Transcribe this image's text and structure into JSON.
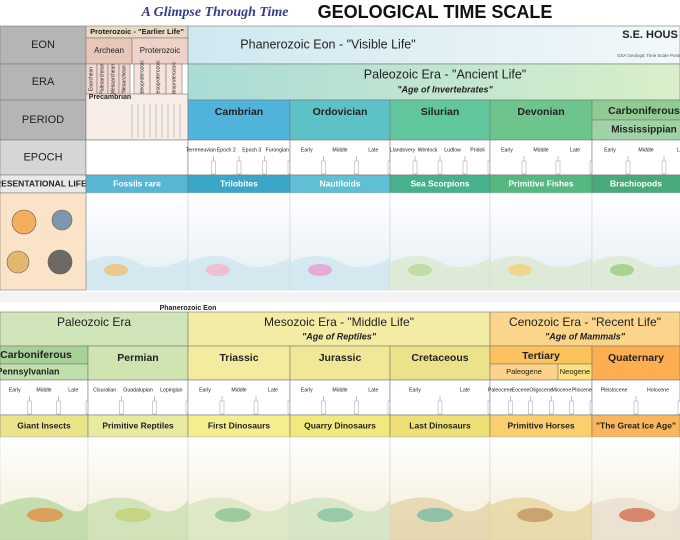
{
  "header": {
    "script_title": "A Glimpse Through Time",
    "title": "GEOLOGICAL TIME SCALE",
    "publisher": "S.E. HOUS",
    "note": "GSA Geologic Time Scale Poster"
  },
  "row_labels": [
    "EON",
    "ERA",
    "PERIOD",
    "EPOCH",
    "PRESENTATIONAL LIFE"
  ],
  "top": {
    "precambrian": {
      "eon": "Proterozoic - \"Earlier Life\"",
      "eras": [
        "Archean",
        "Proterozoic"
      ],
      "archean_eras": [
        "Eoarchean",
        "Paleoarchean",
        "Mesoarchean",
        "Neoarchean"
      ],
      "proterozoic_eras": [
        "Paleoproterozoic",
        "Mesoproterozoic",
        "Neoproterozoic"
      ],
      "label": "Precambrian"
    },
    "eon": "Phanerozoic Eon - \"Visible Life\"",
    "era": "Paleozoic Era - \"Ancient Life\"",
    "era_subtitle": "\"Age of Invertebrates\"",
    "periods": [
      {
        "name": "Cambrian",
        "epochs": [
          "Terreneuvian",
          "Epoch 2",
          "Epoch 3",
          "Furongian"
        ]
      },
      {
        "name": "Ordovician",
        "epochs": [
          "Early",
          "Middle",
          "Late"
        ]
      },
      {
        "name": "Silurian",
        "epochs": [
          "Llandovery",
          "Wenlock",
          "Ludlow",
          "Pridoli"
        ]
      },
      {
        "name": "Devonian",
        "epochs": [
          "Early",
          "Middle",
          "Late"
        ]
      },
      {
        "name": "Carboniferous",
        "subperiod": "Mississippian",
        "epochs": [
          "Early",
          "Middle",
          "Late"
        ]
      }
    ],
    "life": [
      "Fossils rare",
      "Trilobites",
      "Nautiloids",
      "Sea Scorpions",
      "Primitive Fishes",
      "Brachiopods"
    ]
  },
  "bottom": {
    "eon": "Phanerozoic Eon",
    "eras": [
      {
        "name": "Paleozoic Era"
      },
      {
        "name": "Mesozoic Era - \"Middle Life\"",
        "subtitle": "\"Age of Reptiles\""
      },
      {
        "name": "Cenozoic Era - \"Recent Life\"",
        "subtitle": "\"Age of Mammals\""
      }
    ],
    "periods": [
      {
        "name": "Carboniferous",
        "subperiod": "Pennsylvanian",
        "epochs": [
          "Early",
          "Middle",
          "Late"
        ]
      },
      {
        "name": "Permian",
        "epochs": [
          "Cisuralian",
          "Guadalupian",
          "Lopingian"
        ]
      },
      {
        "name": "Triassic",
        "epochs": [
          "Early",
          "Middle",
          "Late"
        ]
      },
      {
        "name": "Jurassic",
        "epochs": [
          "Early",
          "Middle",
          "Late"
        ]
      },
      {
        "name": "Cretaceous",
        "epochs": [
          "Early",
          "Late"
        ]
      },
      {
        "name": "Tertiary",
        "subperiods": [
          "Paleogene",
          "Neogene"
        ],
        "epochs": [
          "Paleocene",
          "Eocene",
          "Oligocene",
          "Miocene",
          "Pliocene"
        ]
      },
      {
        "name": "Quaternary",
        "epochs": [
          "Pleistocene",
          "Holocene"
        ]
      }
    ],
    "life": [
      "Giant Insects",
      "Primitive Reptiles",
      "First Dinosaurs",
      "Quarry Dinosaurs",
      "Last Dinosaurs",
      "Primitive Horses",
      "\"The Great Ice Age\""
    ]
  }
}
